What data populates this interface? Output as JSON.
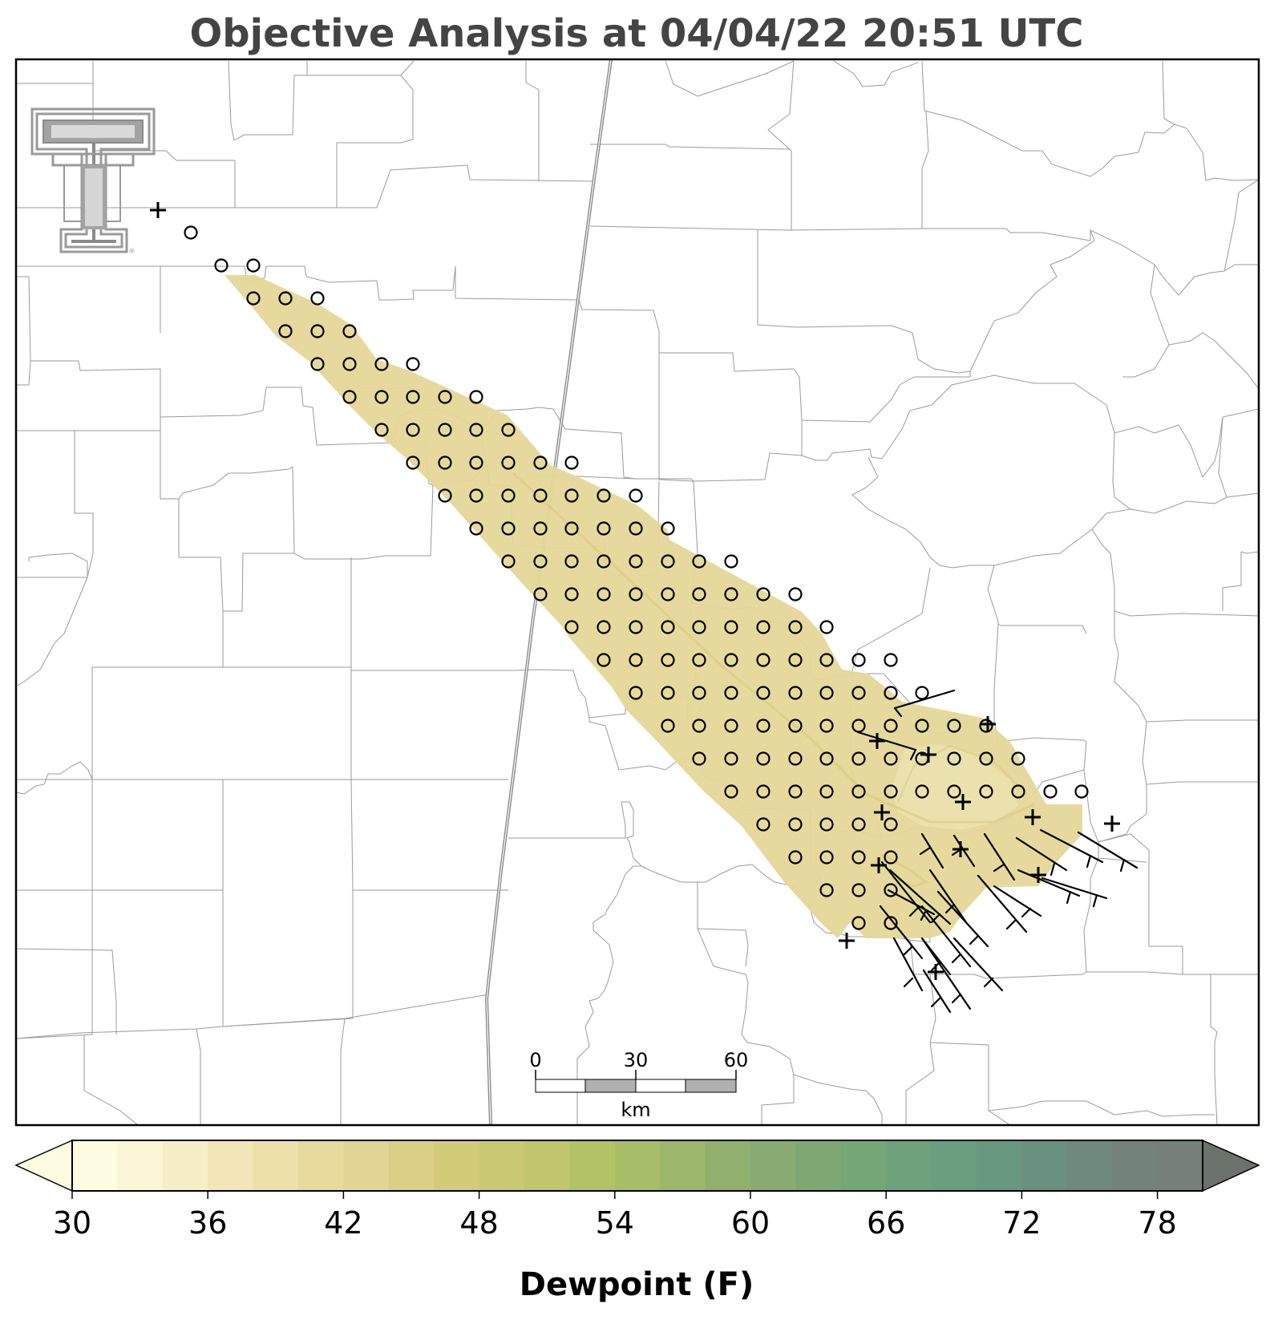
{
  "title": "Objective Analysis at 04/04/22 20:51 UTC",
  "colorbar": {
    "label": "Dewpoint (F)",
    "ticks": [
      "30",
      "36",
      "42",
      "48",
      "54",
      "60",
      "66",
      "72",
      "78"
    ],
    "min": 30,
    "max": 80,
    "step": 2,
    "extend": "both",
    "colors": [
      "#fdfbe0",
      "#faf5d4",
      "#f6eec7",
      "#f2e6b8",
      "#ede0a9",
      "#e8d99c",
      "#e2d493",
      "#dacf85",
      "#d2cb7a",
      "#c9c971",
      "#bfc66b",
      "#b4c266",
      "#a8bd68",
      "#9cb76b",
      "#91b06e",
      "#87ab71",
      "#7da874",
      "#75a678",
      "#6ea27b",
      "#699f7e",
      "#689880",
      "#6a9080",
      "#6f897e",
      "#73837c",
      "#76807a",
      "#737870"
    ],
    "under_color": "#fdfbe0",
    "over_color": "#6a726a"
  },
  "scale_bar": {
    "labels": [
      "0",
      "30",
      "60"
    ],
    "unit": "km"
  },
  "logo": {
    "name": "texas-tech-logo",
    "text": "TT"
  },
  "map": {
    "analysis_field": "dewpoint",
    "analysis_fill": "#e4d798",
    "analysis_core_fill": "#ebe2b0",
    "analysis_contour_color": "#d8c874",
    "analysis_approx_range_F": [
      40,
      44
    ]
  }
}
